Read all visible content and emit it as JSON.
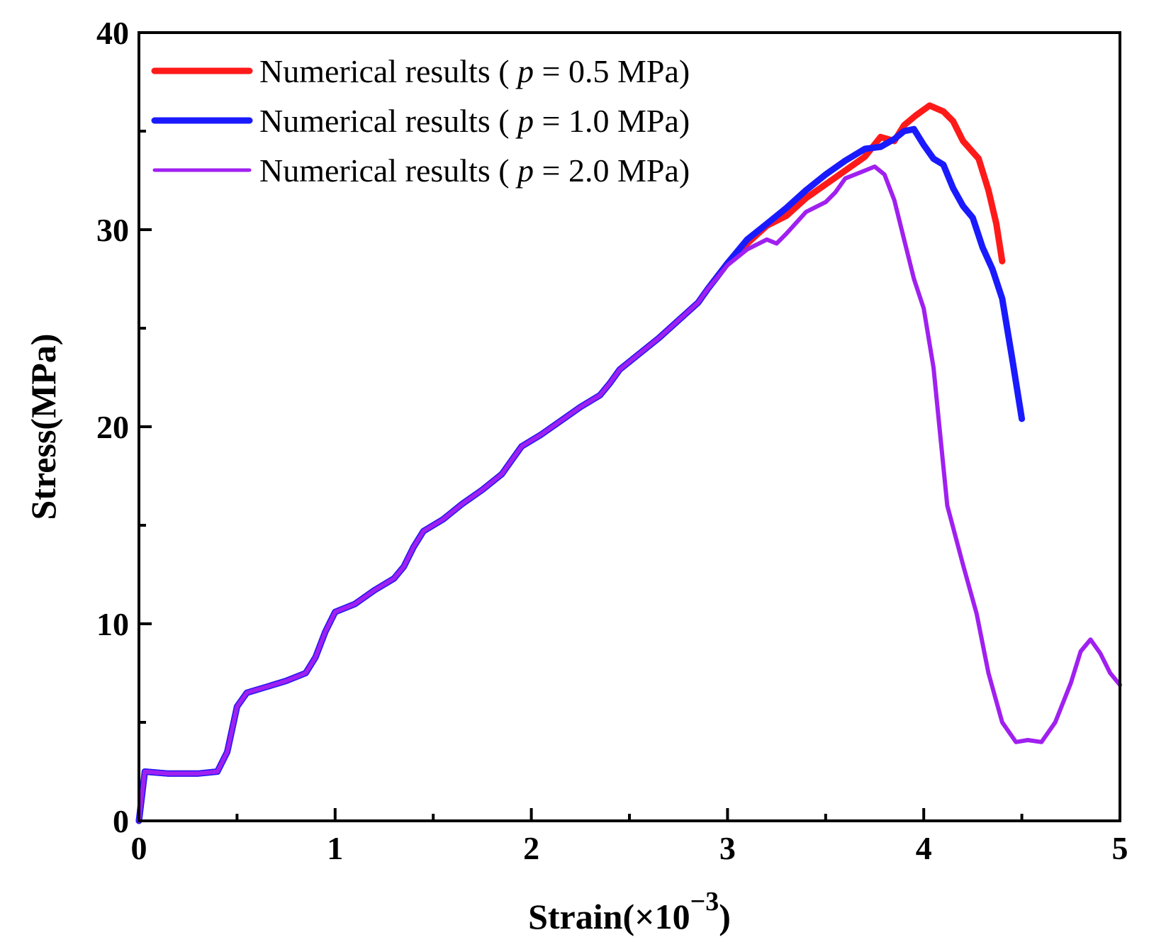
{
  "chart_data": {
    "type": "line",
    "title": "",
    "xlabel": "Strain(×10",
    "xlabel_sup": "−3",
    "xlabel_close": ")",
    "ylabel": "Stress(MPa)",
    "xlim": [
      0,
      5
    ],
    "ylim": [
      0,
      40
    ],
    "x_ticks": [
      "0",
      "1",
      "2",
      "3",
      "4",
      "5"
    ],
    "y_ticks": [
      "0",
      "10",
      "20",
      "30",
      "40"
    ],
    "grid": false,
    "legend_position": "top-left",
    "series": [
      {
        "name": "Numerical results ( p = 0.5 MPa)",
        "legend_prefix": "Numerical results ( ",
        "legend_p": "p",
        "legend_suffix": " = 0.5 MPa)",
        "color": "#ff1a1a",
        "line_style": "thick",
        "points": [
          [
            0,
            0
          ],
          [
            0.03,
            2.5
          ],
          [
            0.15,
            2.4
          ],
          [
            0.3,
            2.4
          ],
          [
            0.4,
            2.5
          ],
          [
            0.45,
            3.5
          ],
          [
            0.5,
            5.8
          ],
          [
            0.55,
            6.5
          ],
          [
            0.65,
            6.8
          ],
          [
            0.75,
            7.1
          ],
          [
            0.85,
            7.5
          ],
          [
            0.9,
            8.3
          ],
          [
            0.95,
            9.6
          ],
          [
            1.0,
            10.6
          ],
          [
            1.1,
            11.0
          ],
          [
            1.2,
            11.7
          ],
          [
            1.3,
            12.3
          ],
          [
            1.35,
            12.9
          ],
          [
            1.4,
            13.9
          ],
          [
            1.45,
            14.7
          ],
          [
            1.55,
            15.3
          ],
          [
            1.65,
            16.1
          ],
          [
            1.75,
            16.8
          ],
          [
            1.85,
            17.6
          ],
          [
            1.9,
            18.3
          ],
          [
            1.95,
            19.0
          ],
          [
            2.05,
            19.6
          ],
          [
            2.15,
            20.3
          ],
          [
            2.25,
            21.0
          ],
          [
            2.35,
            21.6
          ],
          [
            2.4,
            22.2
          ],
          [
            2.45,
            22.9
          ],
          [
            2.55,
            23.7
          ],
          [
            2.65,
            24.5
          ],
          [
            2.75,
            25.4
          ],
          [
            2.85,
            26.3
          ],
          [
            2.9,
            27.0
          ],
          [
            3.0,
            28.3
          ],
          [
            3.1,
            29.3
          ],
          [
            3.2,
            30.2
          ],
          [
            3.3,
            30.7
          ],
          [
            3.4,
            31.6
          ],
          [
            3.5,
            32.3
          ],
          [
            3.6,
            33.0
          ],
          [
            3.7,
            33.7
          ],
          [
            3.78,
            34.7
          ],
          [
            3.85,
            34.5
          ],
          [
            3.9,
            35.3
          ],
          [
            3.96,
            35.8
          ],
          [
            4.03,
            36.3
          ],
          [
            4.1,
            36.0
          ],
          [
            4.15,
            35.5
          ],
          [
            4.2,
            34.5
          ],
          [
            4.28,
            33.6
          ],
          [
            4.33,
            32.0
          ],
          [
            4.37,
            30.3
          ],
          [
            4.4,
            28.4
          ]
        ]
      },
      {
        "name": "Numerical results ( p = 1.0 MPa)",
        "legend_prefix": "Numerical results ( ",
        "legend_p": "p",
        "legend_suffix": " = 1.0 MPa)",
        "color": "#1a1aff",
        "line_style": "thick",
        "points": [
          [
            0,
            0
          ],
          [
            0.03,
            2.5
          ],
          [
            0.15,
            2.4
          ],
          [
            0.3,
            2.4
          ],
          [
            0.4,
            2.5
          ],
          [
            0.45,
            3.5
          ],
          [
            0.5,
            5.8
          ],
          [
            0.55,
            6.5
          ],
          [
            0.65,
            6.8
          ],
          [
            0.75,
            7.1
          ],
          [
            0.85,
            7.5
          ],
          [
            0.9,
            8.3
          ],
          [
            0.95,
            9.6
          ],
          [
            1.0,
            10.6
          ],
          [
            1.1,
            11.0
          ],
          [
            1.2,
            11.7
          ],
          [
            1.3,
            12.3
          ],
          [
            1.35,
            12.9
          ],
          [
            1.4,
            13.9
          ],
          [
            1.45,
            14.7
          ],
          [
            1.55,
            15.3
          ],
          [
            1.65,
            16.1
          ],
          [
            1.75,
            16.8
          ],
          [
            1.85,
            17.6
          ],
          [
            1.9,
            18.3
          ],
          [
            1.95,
            19.0
          ],
          [
            2.05,
            19.6
          ],
          [
            2.15,
            20.3
          ],
          [
            2.25,
            21.0
          ],
          [
            2.35,
            21.6
          ],
          [
            2.4,
            22.2
          ],
          [
            2.45,
            22.9
          ],
          [
            2.55,
            23.7
          ],
          [
            2.65,
            24.5
          ],
          [
            2.75,
            25.4
          ],
          [
            2.85,
            26.3
          ],
          [
            2.9,
            27.0
          ],
          [
            3.0,
            28.3
          ],
          [
            3.1,
            29.5
          ],
          [
            3.2,
            30.3
          ],
          [
            3.3,
            31.1
          ],
          [
            3.4,
            32.0
          ],
          [
            3.5,
            32.8
          ],
          [
            3.6,
            33.5
          ],
          [
            3.7,
            34.1
          ],
          [
            3.78,
            34.2
          ],
          [
            3.85,
            34.6
          ],
          [
            3.9,
            35.0
          ],
          [
            3.95,
            35.1
          ],
          [
            4.0,
            34.3
          ],
          [
            4.05,
            33.6
          ],
          [
            4.1,
            33.3
          ],
          [
            4.15,
            32.1
          ],
          [
            4.2,
            31.2
          ],
          [
            4.25,
            30.6
          ],
          [
            4.3,
            29.1
          ],
          [
            4.35,
            28.0
          ],
          [
            4.4,
            26.5
          ],
          [
            4.45,
            23.5
          ],
          [
            4.5,
            20.4
          ]
        ]
      },
      {
        "name": "Numerical results ( p = 2.0 MPa)",
        "legend_prefix": "Numerical results ( ",
        "legend_p": "p",
        "legend_suffix": " = 2.0 MPa)",
        "color": "#a020f0",
        "line_style": "thin",
        "points": [
          [
            0,
            0
          ],
          [
            0.03,
            2.5
          ],
          [
            0.15,
            2.4
          ],
          [
            0.3,
            2.4
          ],
          [
            0.4,
            2.5
          ],
          [
            0.45,
            3.5
          ],
          [
            0.5,
            5.8
          ],
          [
            0.55,
            6.5
          ],
          [
            0.65,
            6.8
          ],
          [
            0.75,
            7.1
          ],
          [
            0.85,
            7.5
          ],
          [
            0.9,
            8.3
          ],
          [
            0.95,
            9.6
          ],
          [
            1.0,
            10.6
          ],
          [
            1.1,
            11.0
          ],
          [
            1.2,
            11.7
          ],
          [
            1.3,
            12.3
          ],
          [
            1.35,
            12.9
          ],
          [
            1.4,
            13.9
          ],
          [
            1.45,
            14.7
          ],
          [
            1.55,
            15.3
          ],
          [
            1.65,
            16.1
          ],
          [
            1.75,
            16.8
          ],
          [
            1.85,
            17.6
          ],
          [
            1.9,
            18.3
          ],
          [
            1.95,
            19.0
          ],
          [
            2.05,
            19.6
          ],
          [
            2.15,
            20.3
          ],
          [
            2.25,
            21.0
          ],
          [
            2.35,
            21.6
          ],
          [
            2.4,
            22.2
          ],
          [
            2.45,
            22.9
          ],
          [
            2.55,
            23.7
          ],
          [
            2.65,
            24.5
          ],
          [
            2.75,
            25.4
          ],
          [
            2.85,
            26.3
          ],
          [
            2.9,
            27.0
          ],
          [
            3.0,
            28.2
          ],
          [
            3.1,
            29.0
          ],
          [
            3.2,
            29.5
          ],
          [
            3.25,
            29.3
          ],
          [
            3.3,
            29.8
          ],
          [
            3.4,
            30.9
          ],
          [
            3.5,
            31.4
          ],
          [
            3.55,
            31.9
          ],
          [
            3.6,
            32.6
          ],
          [
            3.7,
            33.0
          ],
          [
            3.75,
            33.2
          ],
          [
            3.8,
            32.8
          ],
          [
            3.85,
            31.5
          ],
          [
            3.9,
            29.5
          ],
          [
            3.95,
            27.5
          ],
          [
            4.0,
            26.0
          ],
          [
            4.05,
            23.0
          ],
          [
            4.08,
            20.0
          ],
          [
            4.12,
            16.0
          ],
          [
            4.2,
            13.0
          ],
          [
            4.27,
            10.5
          ],
          [
            4.33,
            7.5
          ],
          [
            4.4,
            5.0
          ],
          [
            4.47,
            4.0
          ],
          [
            4.53,
            4.1
          ],
          [
            4.6,
            4.0
          ],
          [
            4.67,
            5.0
          ],
          [
            4.75,
            7.0
          ],
          [
            4.8,
            8.6
          ],
          [
            4.85,
            9.2
          ],
          [
            4.9,
            8.5
          ],
          [
            4.95,
            7.5
          ],
          [
            5.0,
            6.9
          ]
        ]
      }
    ]
  }
}
